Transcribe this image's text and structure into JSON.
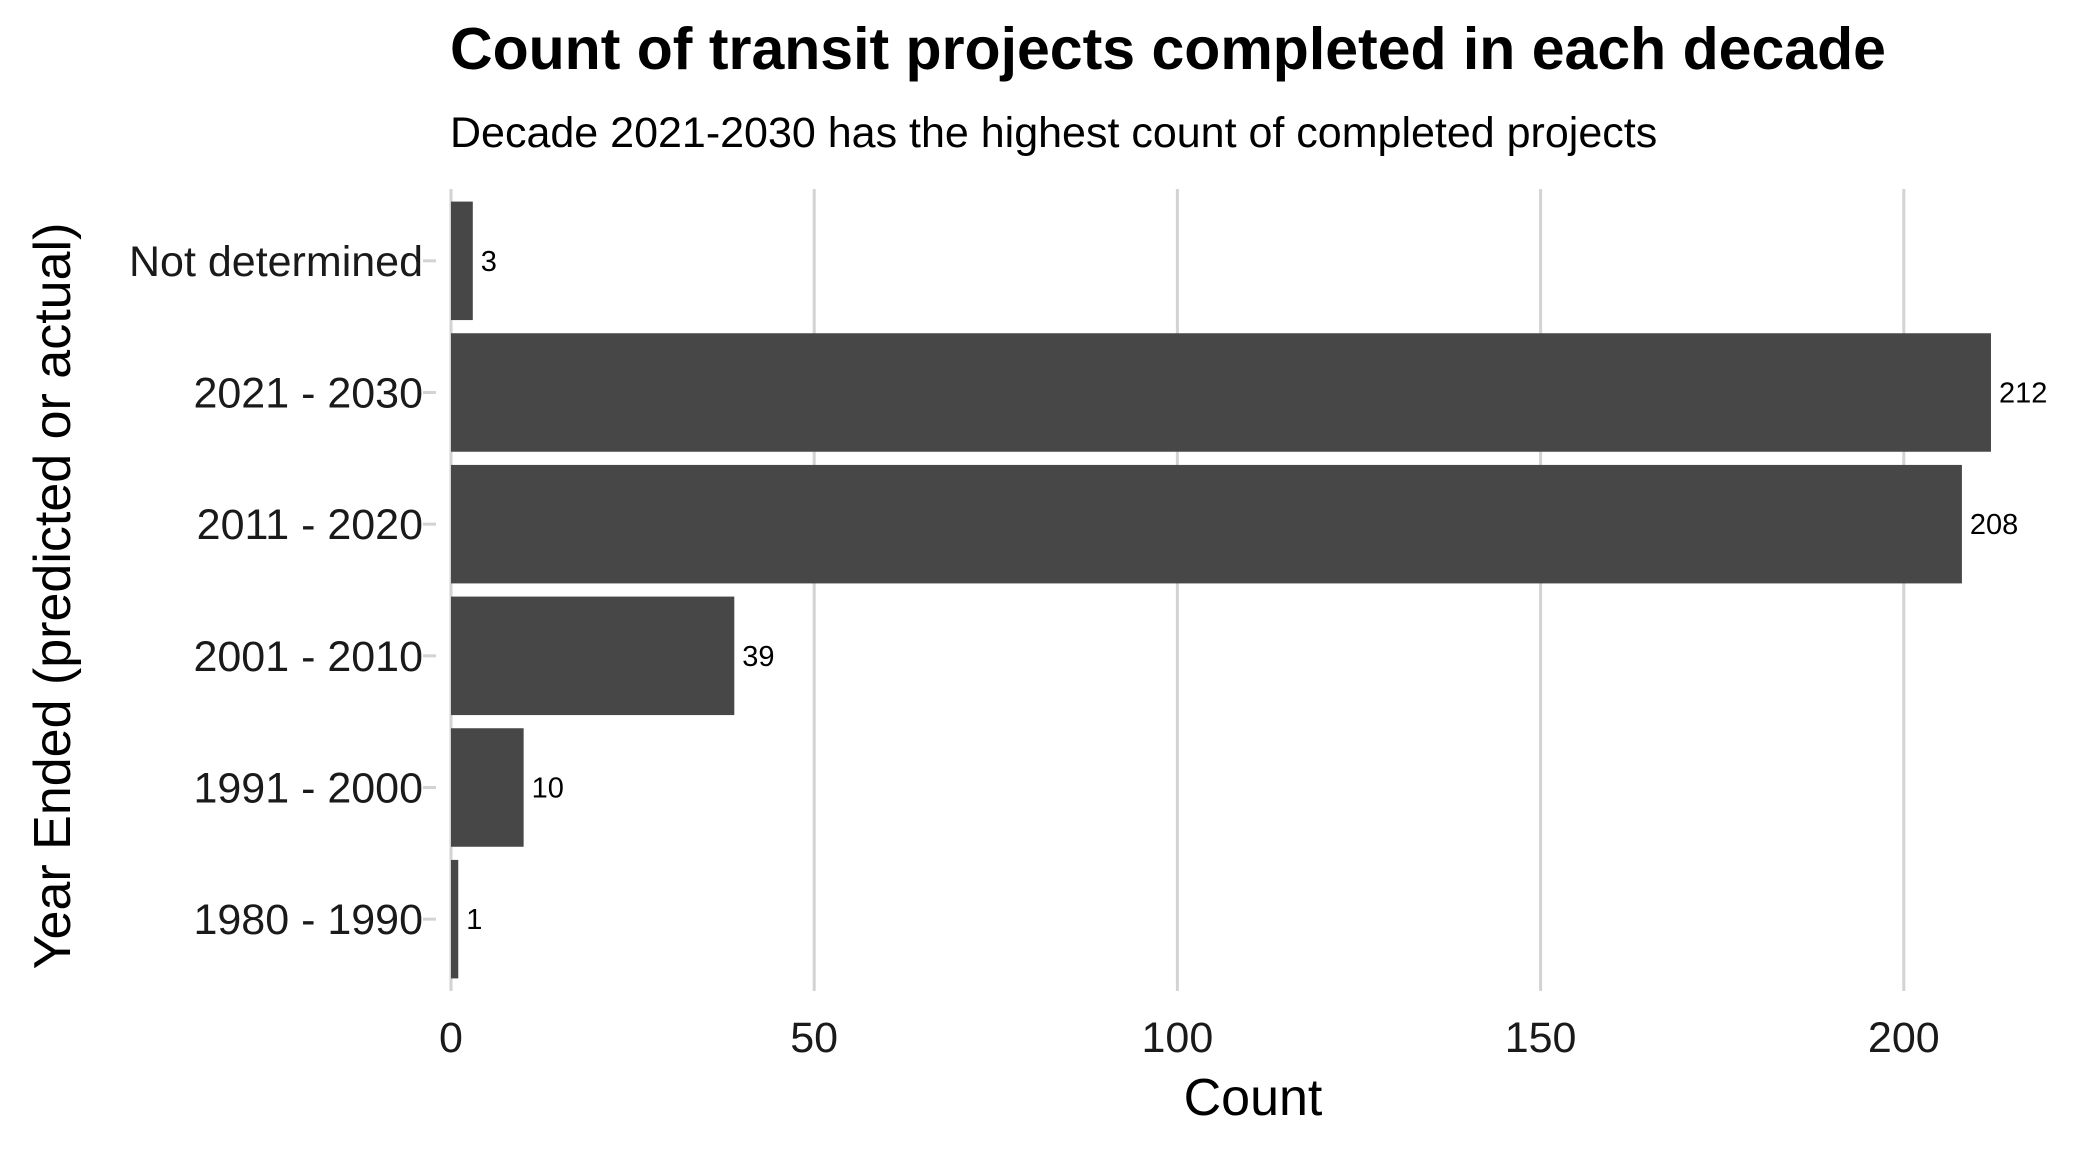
{
  "chart_data": {
    "type": "bar",
    "orientation": "horizontal",
    "title": "Count of transit projects completed in each decade",
    "subtitle": "Decade 2021-2030 has the highest count of completed projects",
    "xlabel": "Count",
    "ylabel": "Year Ended (predicted or actual)",
    "categories": [
      "1980 - 1990",
      "1991 - 2000",
      "2001 - 2010",
      "2011 - 2020",
      "2021 - 2030",
      "Not determined"
    ],
    "values": [
      1,
      10,
      39,
      208,
      212,
      3
    ],
    "data_labels": [
      "1",
      "10",
      "39",
      "208",
      "212",
      "3"
    ],
    "xlim": [
      0,
      212
    ],
    "x_ticks": [
      0,
      50,
      100,
      150,
      200
    ],
    "x_tick_labels": [
      "0",
      "50",
      "100",
      "150",
      "200"
    ],
    "grid": "vertical major",
    "legend": "none",
    "bar_color": "#474747",
    "grid_color": "#d3d3d3"
  }
}
